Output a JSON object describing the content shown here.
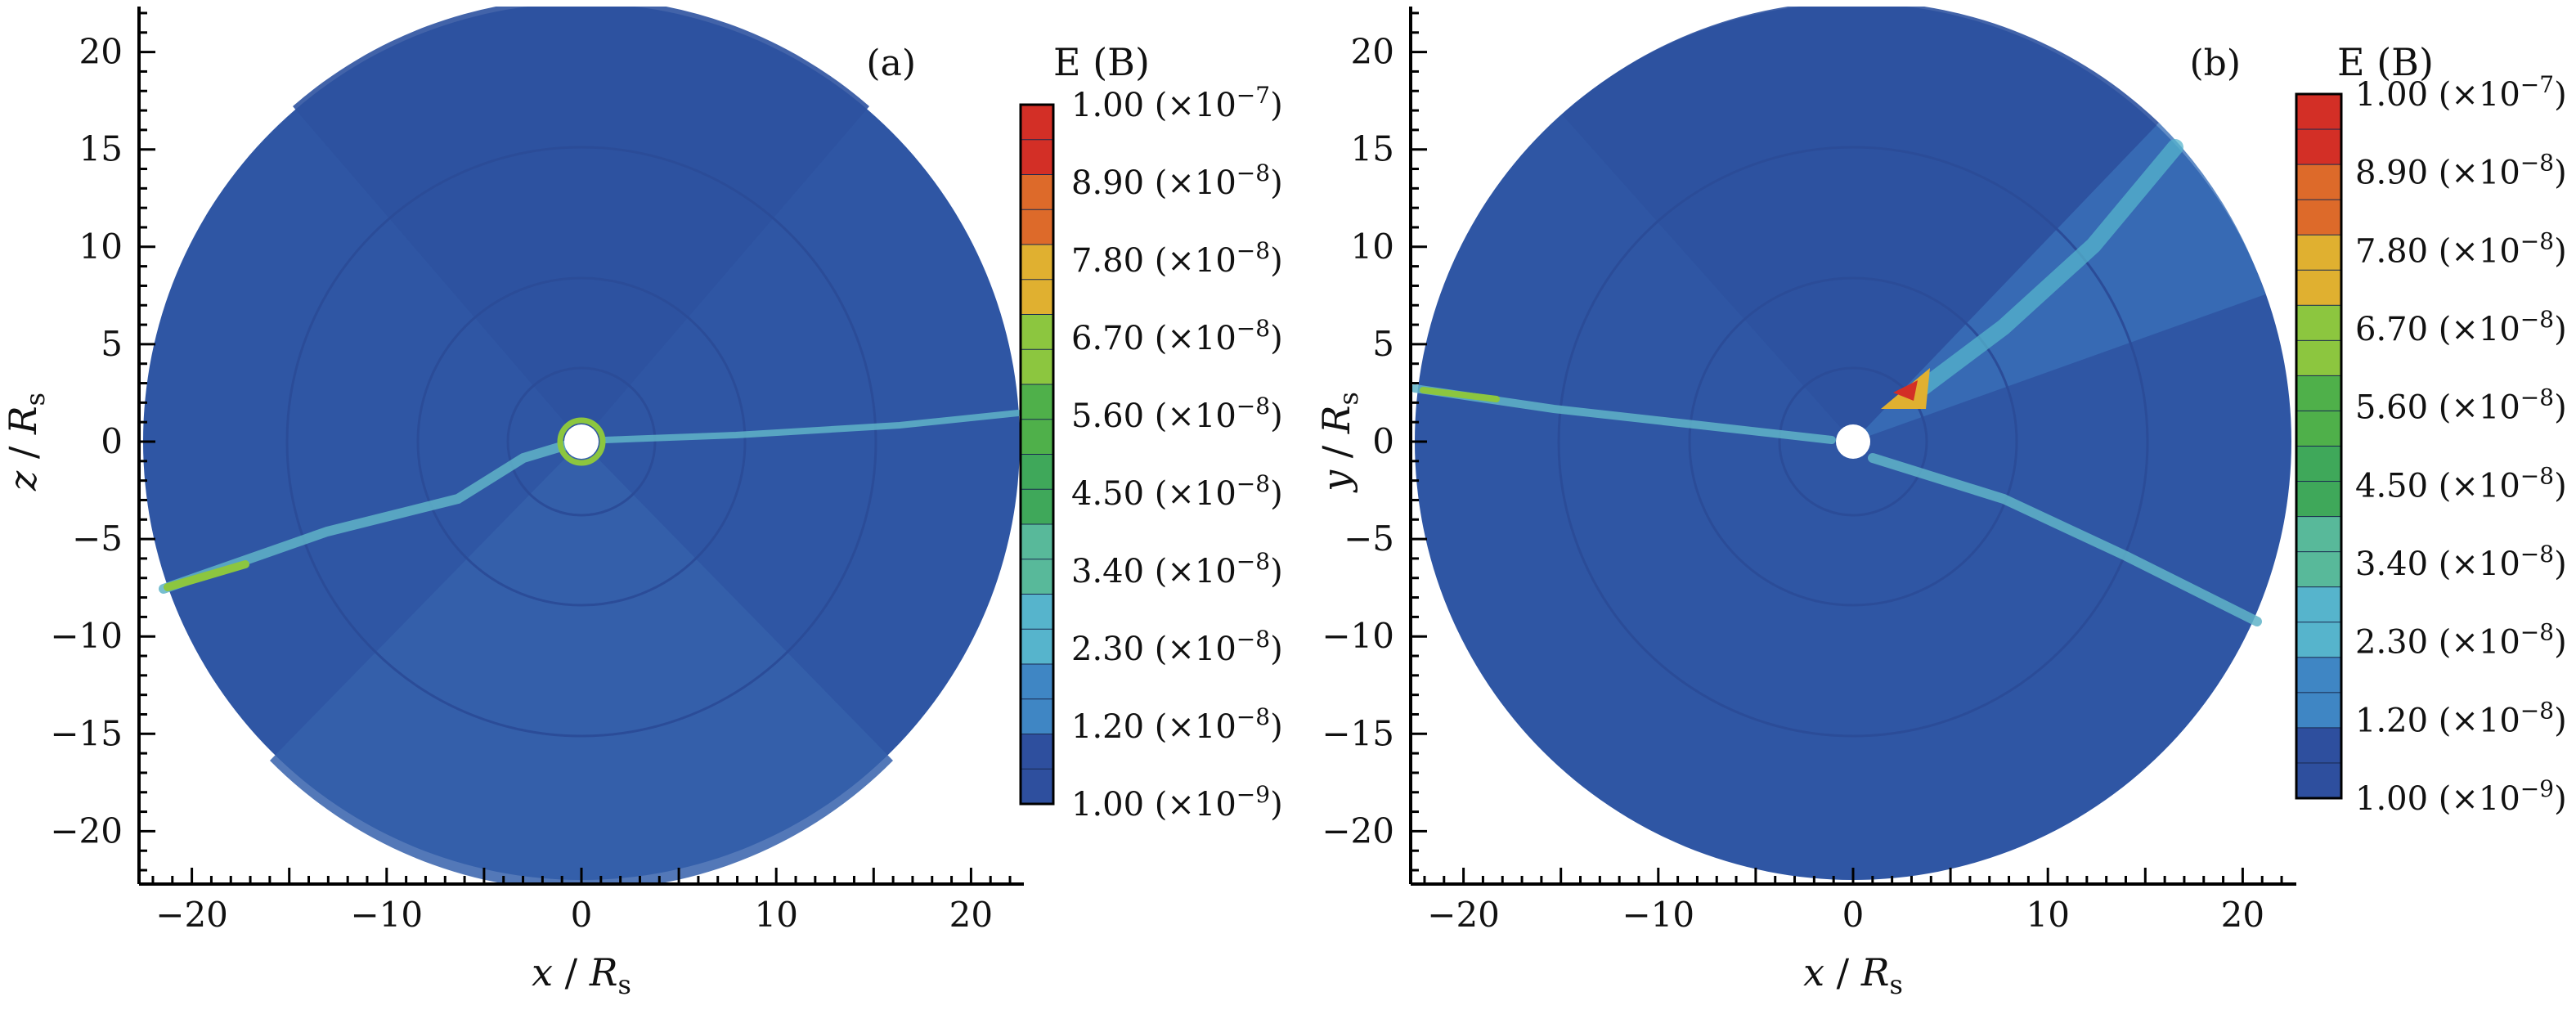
{
  "figure": {
    "panels": [
      {
        "id": "a",
        "panel_label": "(a)",
        "xlabel": {
          "var": "x",
          "sep": " / ",
          "unit": "R",
          "sub": "s"
        },
        "ylabel": {
          "var": "z",
          "sep": " / ",
          "unit": "R",
          "sub": "s"
        },
        "colorbar_title": "E (B)"
      },
      {
        "id": "b",
        "panel_label": "(b)",
        "xlabel": {
          "var": "x",
          "sep": " / ",
          "unit": "R",
          "sub": "s"
        },
        "ylabel": {
          "var": "y",
          "sep": " / ",
          "unit": "R",
          "sub": "s"
        },
        "colorbar_title": "E (B)"
      }
    ]
  },
  "chart_data": [
    {
      "type": "heatmap",
      "panel": "(a)",
      "description_plane": "x-z",
      "xlim": [
        -22.5,
        22.5
      ],
      "ylim": [
        -22.5,
        22.5
      ],
      "x_ticks": [
        -20,
        -10,
        0,
        10,
        20
      ],
      "y_ticks": [
        20,
        15,
        10,
        5,
        0,
        -5,
        -10,
        -15,
        -20
      ],
      "x_tick_labels": [
        "−20",
        "−10",
        "0",
        "10",
        "20"
      ],
      "y_tick_labels": [
        "20",
        "15",
        "10",
        "5",
        "0",
        "−5",
        "−10",
        "−15",
        "−20"
      ],
      "domain_radius": 22.5,
      "inner_radius": 1.0,
      "colorbar": {
        "title": "E (B)",
        "levels": [
          {
            "mantissa": "1.00",
            "exp": "−7",
            "color": "#d32f26"
          },
          {
            "mantissa": "8.90",
            "exp": "−8",
            "color": "#dd6a2a"
          },
          {
            "mantissa": "7.80",
            "exp": "−8",
            "color": "#e0b030"
          },
          {
            "mantissa": "6.70",
            "exp": "−8",
            "color": "#8cc63f"
          },
          {
            "mantissa": "5.60",
            "exp": "−8",
            "color": "#4fb04a"
          },
          {
            "mantissa": "4.50",
            "exp": "−8",
            "color": "#3fa85a"
          },
          {
            "mantissa": "3.40",
            "exp": "−8",
            "color": "#58b99a"
          },
          {
            "mantissa": "2.30",
            "exp": "−8",
            "color": "#56b4cc"
          },
          {
            "mantissa": "1.20",
            "exp": "−8",
            "color": "#3f86c4"
          },
          {
            "mantissa": "1.00",
            "exp": "−9",
            "color": "#2e4f9e"
          }
        ]
      }
    },
    {
      "type": "heatmap",
      "panel": "(b)",
      "description_plane": "x-y",
      "xlim": [
        -22.5,
        22.5
      ],
      "ylim": [
        -22.5,
        22.5
      ],
      "x_ticks": [
        -20,
        -10,
        0,
        10,
        20
      ],
      "y_ticks": [
        20,
        15,
        10,
        5,
        0,
        -5,
        -10,
        -15,
        -20
      ],
      "x_tick_labels": [
        "−20",
        "−10",
        "0",
        "10",
        "20"
      ],
      "y_tick_labels": [
        "20",
        "15",
        "10",
        "5",
        "0",
        "−5",
        "−10",
        "−15",
        "−20"
      ],
      "domain_radius": 22.5,
      "inner_radius": 1.0,
      "colorbar": {
        "title": "E (B)",
        "levels": [
          {
            "mantissa": "1.00",
            "exp": "−7",
            "color": "#d32f26"
          },
          {
            "mantissa": "8.90",
            "exp": "−8",
            "color": "#dd6a2a"
          },
          {
            "mantissa": "7.80",
            "exp": "−8",
            "color": "#e0b030"
          },
          {
            "mantissa": "6.70",
            "exp": "−8",
            "color": "#8cc63f"
          },
          {
            "mantissa": "5.60",
            "exp": "−8",
            "color": "#4fb04a"
          },
          {
            "mantissa": "4.50",
            "exp": "−8",
            "color": "#3fa85a"
          },
          {
            "mantissa": "3.40",
            "exp": "−8",
            "color": "#58b99a"
          },
          {
            "mantissa": "2.30",
            "exp": "−8",
            "color": "#56b4cc"
          },
          {
            "mantissa": "1.20",
            "exp": "−8",
            "color": "#3f86c4"
          },
          {
            "mantissa": "1.00",
            "exp": "−9",
            "color": "#2e4f9e"
          }
        ]
      }
    }
  ]
}
